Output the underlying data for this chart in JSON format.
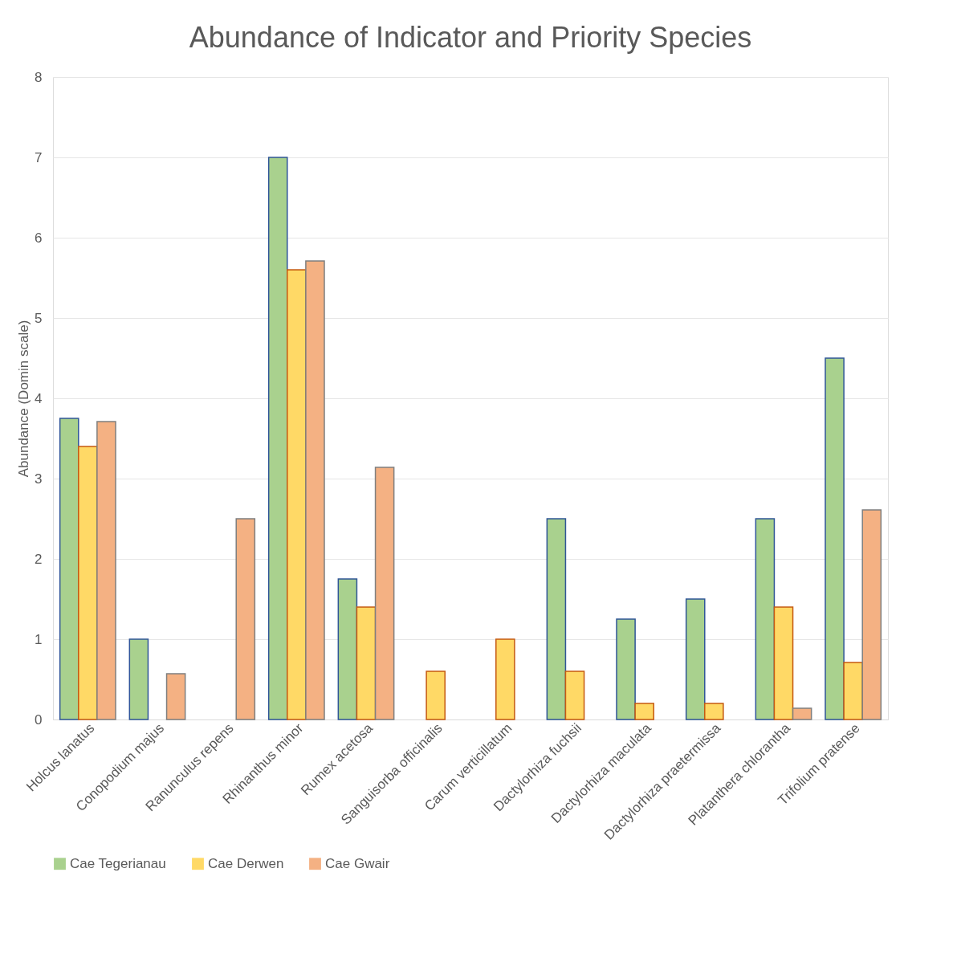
{
  "chart_data": {
    "type": "bar",
    "title": "Abundance of Indicator and Priority Species",
    "ylabel": "Abundance (Domin scale)",
    "categories": [
      "Holcus lanatus",
      "Conopodium majus",
      "Ranunculus repens",
      "Rhinanthus minor",
      "Rumex acetosa",
      "Sanguisorba officinalis",
      "Carum verticillatum",
      "Dactylorhiza fuchsii",
      "Dactylorhiza maculata",
      "Dactylorhiza praetermissa",
      "Platanthera chlorantha",
      "Trifolium pratense"
    ],
    "series": [
      {
        "name": "Cae Tegerianau",
        "color": "#a9d18e",
        "values": [
          3.75,
          1.0,
          null,
          7.0,
          1.75,
          null,
          null,
          2.5,
          1.25,
          1.5,
          2.5,
          4.5
        ]
      },
      {
        "name": "Cae Derwen",
        "color": "#ffd966",
        "values": [
          3.4,
          null,
          null,
          5.6,
          1.4,
          0.6,
          1.0,
          0.6,
          0.2,
          0.2,
          1.4,
          0.71
        ]
      },
      {
        "name": "Cae Gwair",
        "color": "#f4b183",
        "values": [
          3.71,
          0.57,
          2.5,
          5.71,
          3.14,
          null,
          null,
          null,
          null,
          null,
          0.14,
          2.61
        ]
      }
    ],
    "ylim": [
      0,
      8
    ],
    "yticks": [
      0,
      1,
      2,
      3,
      4,
      5,
      6,
      7,
      8
    ],
    "grid": "y",
    "legend": "bottom"
  }
}
